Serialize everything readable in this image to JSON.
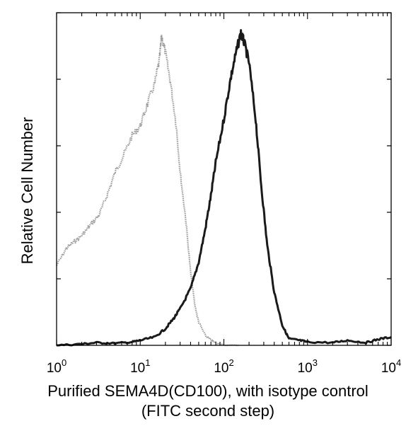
{
  "chart_data": {
    "type": "line",
    "title": "",
    "xlabel": "Purified SEMA4D(CD100), with isotype control",
    "xlabel_line2": "(FITC second step)",
    "ylabel": "Relative Cell Number",
    "x_scale": "log",
    "xlim": [
      1,
      10000
    ],
    "ylim": [
      0,
      100
    ],
    "grid": false,
    "legend": "none",
    "x_tick_labels": [
      {
        "base": "10",
        "exp": "0",
        "value": 1
      },
      {
        "base": "10",
        "exp": "1",
        "value": 10
      },
      {
        "base": "10",
        "exp": "2",
        "value": 100
      },
      {
        "base": "10",
        "exp": "3",
        "value": 1000
      },
      {
        "base": "10",
        "exp": "4",
        "value": 10000
      }
    ],
    "y_ticks": [
      0,
      20,
      40,
      60,
      80,
      100
    ],
    "series": [
      {
        "style": "isotype-control-gray",
        "color": "#9a9a9a",
        "x": [
          1.0,
          1.3,
          1.6,
          2.0,
          2.5,
          3.2,
          4.0,
          5.0,
          6.3,
          8.0,
          10,
          12,
          15,
          17,
          18,
          20,
          23,
          27,
          30,
          35,
          40,
          45,
          50,
          60,
          70,
          80,
          100,
          150
        ],
        "y": [
          24,
          29,
          31,
          33,
          36,
          39,
          45,
          52,
          57,
          63,
          66,
          72,
          79,
          86,
          93,
          88,
          79,
          66,
          52,
          38,
          22,
          12,
          7,
          3,
          1.5,
          0.8,
          0,
          0
        ]
      },
      {
        "style": "SEMA4D-black",
        "color": "#1a1a1a",
        "x": [
          1,
          2,
          3,
          5,
          8,
          10,
          15,
          20,
          25,
          30,
          40,
          50,
          60,
          70,
          80,
          100,
          120,
          140,
          160,
          175,
          200,
          240,
          280,
          330,
          400,
          500,
          600,
          800,
          1000,
          2000,
          3000,
          5000,
          7000,
          10000
        ],
        "y": [
          0,
          0.4,
          0.8,
          0.6,
          1,
          1.5,
          2.5,
          5,
          8,
          11,
          17,
          25,
          35,
          45,
          55,
          68,
          80,
          88,
          94,
          91,
          85,
          68,
          48,
          30,
          16,
          6,
          2,
          1.5,
          1,
          0.8,
          1.5,
          0.8,
          1.8,
          2.5
        ]
      }
    ]
  }
}
